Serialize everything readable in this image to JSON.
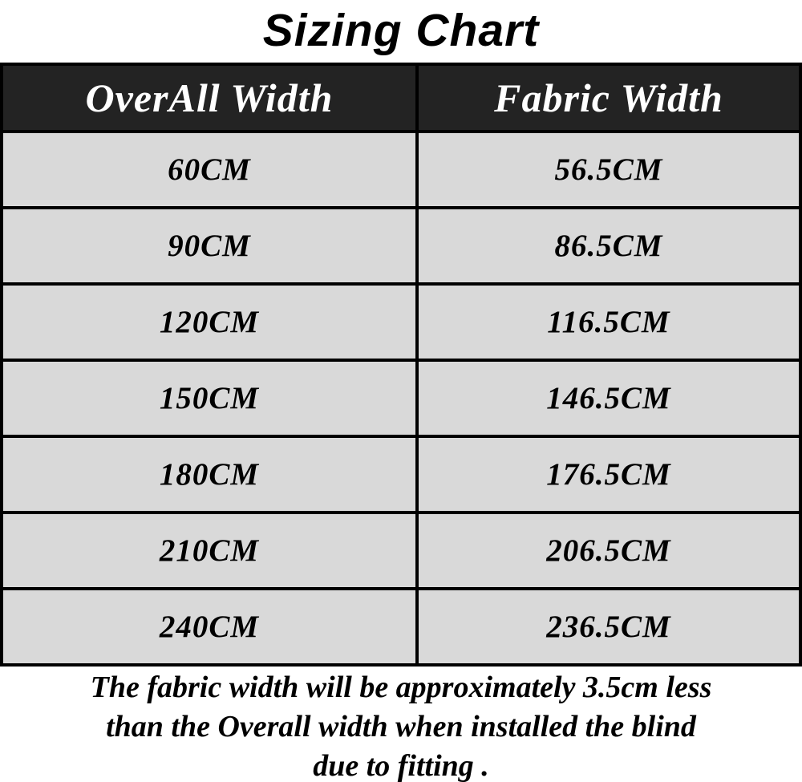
{
  "title": "Sizing Chart",
  "table": {
    "headers": [
      "OverAll Width",
      "Fabric Width"
    ],
    "rows": [
      [
        "60CM",
        "56.5CM"
      ],
      [
        "90CM",
        "86.5CM"
      ],
      [
        "120CM",
        "116.5CM"
      ],
      [
        "150CM",
        "146.5CM"
      ],
      [
        "180CM",
        "176.5CM"
      ],
      [
        "210CM",
        "206.5CM"
      ],
      [
        "240CM",
        "236.5CM"
      ]
    ]
  },
  "footer": {
    "lines": [
      "The fabric width will be approximately 3.5cm less",
      "than the Overall width when installed the blind",
      "due to fitting ."
    ]
  },
  "colors": {
    "header_bg": "#232323",
    "header_text": "#ffffff",
    "row_bg": "#d9d9d9",
    "border_color": "#000000",
    "text_color": "#000000",
    "page_bg": "#ffffff"
  }
}
